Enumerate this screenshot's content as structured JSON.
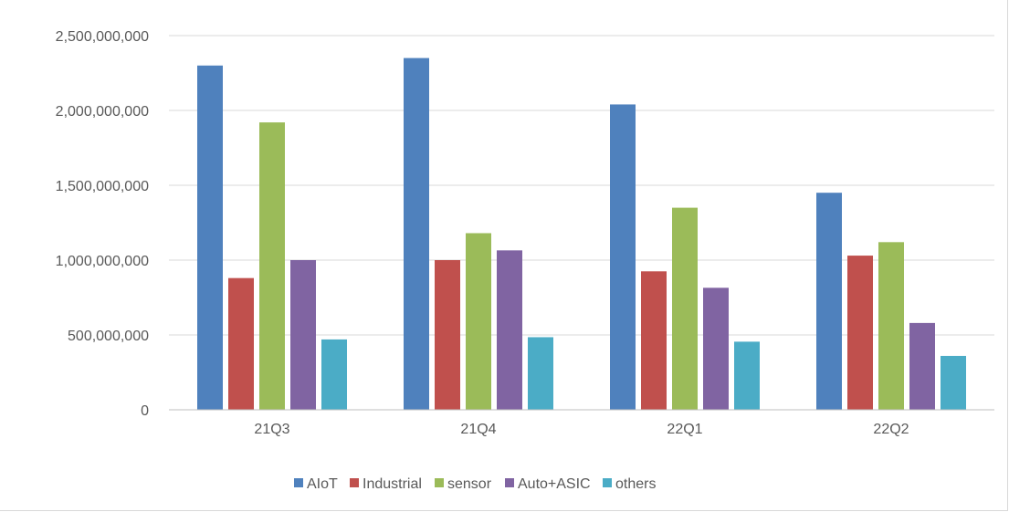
{
  "chart_data": {
    "type": "bar",
    "categories": [
      "21Q3",
      "21Q4",
      "22Q1",
      "22Q2"
    ],
    "series": [
      {
        "name": "AIoT",
        "color": "#4f81bd",
        "values": [
          2300000000,
          2350000000,
          2040000000,
          1450000000
        ]
      },
      {
        "name": "Industrial",
        "color": "#c0504d",
        "values": [
          880000000,
          1000000000,
          925000000,
          1030000000
        ]
      },
      {
        "name": "sensor",
        "color": "#9bbb59",
        "values": [
          1920000000,
          1180000000,
          1350000000,
          1120000000
        ]
      },
      {
        "name": "Auto+ASIC",
        "color": "#8064a2",
        "values": [
          1000000000,
          1065000000,
          815000000,
          580000000
        ]
      },
      {
        "name": "others",
        "color": "#4bacc6",
        "values": [
          470000000,
          485000000,
          455000000,
          360000000
        ]
      }
    ],
    "yticks": [
      "0",
      "500,000,000",
      "1,000,000,000",
      "1,500,000,000",
      "2,000,000,000",
      "2,500,000,000"
    ],
    "ylim": [
      0,
      2500000000
    ],
    "grid": true,
    "legend": "bottom",
    "title": "",
    "xlabel": "",
    "ylabel": ""
  }
}
